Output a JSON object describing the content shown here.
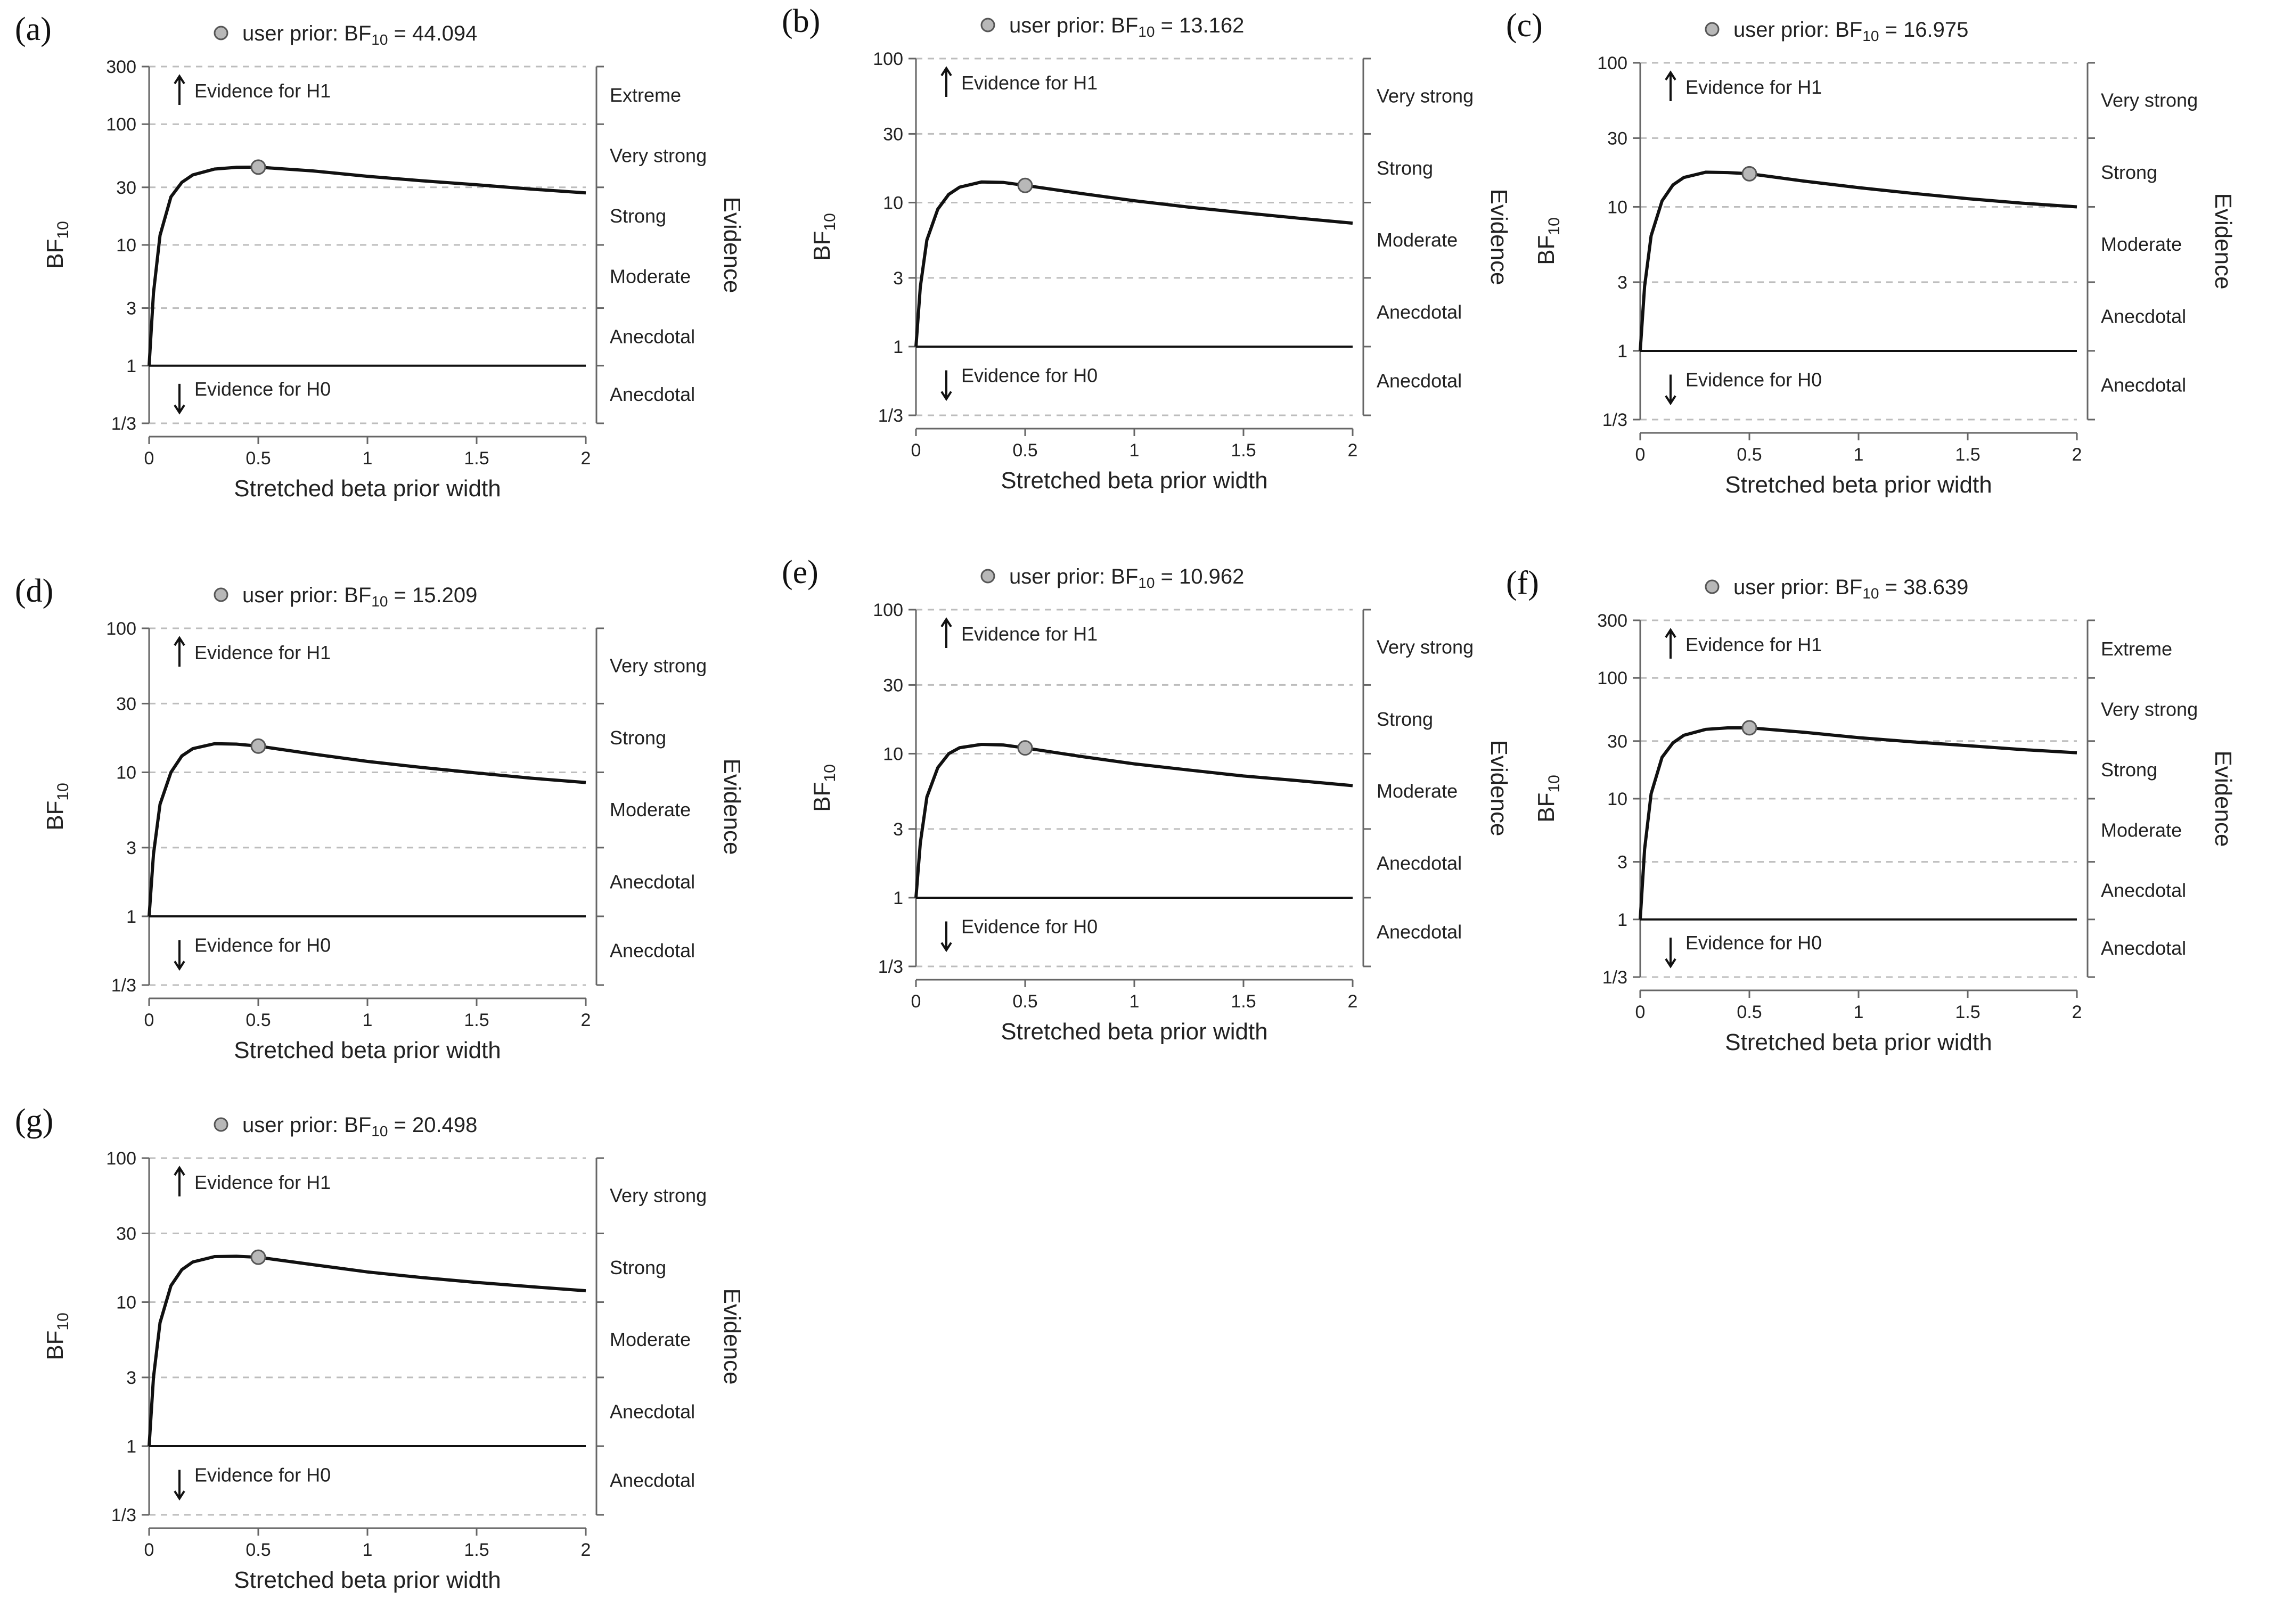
{
  "figure": {
    "panels": [
      {
        "label": "(a)",
        "legend_text": "user prior:",
        "bf_symbol": "BF",
        "bf_sub": "10",
        "bf_value": "44.094"
      },
      {
        "label": "(b)",
        "legend_text": "user prior:",
        "bf_symbol": "BF",
        "bf_sub": "10",
        "bf_value": "13.162"
      },
      {
        "label": "(c)",
        "legend_text": "user prior:",
        "bf_symbol": "BF",
        "bf_sub": "10",
        "bf_value": "16.975"
      },
      {
        "label": "(d)",
        "legend_text": "user prior:",
        "bf_symbol": "BF",
        "bf_sub": "10",
        "bf_value": "15.209"
      },
      {
        "label": "(e)",
        "legend_text": "user prior:",
        "bf_symbol": "BF",
        "bf_sub": "10",
        "bf_value": "10.962"
      },
      {
        "label": "(f)",
        "legend_text": "user prior:",
        "bf_symbol": "BF",
        "bf_sub": "10",
        "bf_value": "38.639"
      },
      {
        "label": "(g)",
        "legend_text": "user prior:",
        "bf_symbol": "BF",
        "bf_sub": "10",
        "bf_value": "20.498"
      }
    ]
  },
  "chart_data": [
    {
      "type": "line",
      "panel": "(a)",
      "title": "user prior: BF10 = 44.094",
      "xlabel": "Stretched beta prior width",
      "ylabel": "BF10",
      "right_label": "Evidence",
      "y_scale": "log",
      "xlim": [
        0,
        2
      ],
      "ylim": [
        0.3333,
        300
      ],
      "x_ticks": [
        "0",
        "0.5",
        "1",
        "1.5",
        "2"
      ],
      "y_ticks": [
        {
          "v": 300,
          "t": "300"
        },
        {
          "v": 100,
          "t": "100"
        },
        {
          "v": 30,
          "t": "30"
        },
        {
          "v": 10,
          "t": "10"
        },
        {
          "v": 3,
          "t": "3"
        },
        {
          "v": 1,
          "t": "1"
        },
        {
          "v": 0.3333,
          "t": "1/3"
        }
      ],
      "evidence_categories": [
        {
          "t": "Extreme",
          "lo": 100,
          "hi": 300
        },
        {
          "t": "Very strong",
          "lo": 30,
          "hi": 100
        },
        {
          "t": "Strong",
          "lo": 10,
          "hi": 30
        },
        {
          "t": "Moderate",
          "lo": 3,
          "hi": 10
        },
        {
          "t": "Anecdotal",
          "lo": 1,
          "hi": 3
        },
        {
          "t": "Anecdotal",
          "lo": 0.3333,
          "hi": 1
        }
      ],
      "annotations": [
        "Evidence for H1",
        "Evidence for H0"
      ],
      "series": {
        "x": [
          0,
          0.02,
          0.05,
          0.1,
          0.15,
          0.2,
          0.3,
          0.4,
          0.5,
          0.75,
          1,
          1.25,
          1.5,
          1.75,
          2
        ],
        "y": [
          1,
          4,
          12,
          25,
          33,
          38,
          42.5,
          43.9,
          44.094,
          41,
          37,
          34,
          31.5,
          29,
          27
        ]
      },
      "user_prior_point": {
        "x": 0.5,
        "y": 44.094
      }
    },
    {
      "type": "line",
      "panel": "(b)",
      "title": "user prior: BF10 = 13.162",
      "xlabel": "Stretched beta prior width",
      "ylabel": "BF10",
      "right_label": "Evidence",
      "y_scale": "log",
      "xlim": [
        0,
        2
      ],
      "ylim": [
        0.3333,
        100
      ],
      "x_ticks": [
        "0",
        "0.5",
        "1",
        "1.5",
        "2"
      ],
      "y_ticks": [
        {
          "v": 100,
          "t": "100"
        },
        {
          "v": 30,
          "t": "30"
        },
        {
          "v": 10,
          "t": "10"
        },
        {
          "v": 3,
          "t": "3"
        },
        {
          "v": 1,
          "t": "1"
        },
        {
          "v": 0.3333,
          "t": "1/3"
        }
      ],
      "evidence_categories": [
        {
          "t": "Very strong",
          "lo": 30,
          "hi": 100
        },
        {
          "t": "Strong",
          "lo": 10,
          "hi": 30
        },
        {
          "t": "Moderate",
          "lo": 3,
          "hi": 10
        },
        {
          "t": "Anecdotal",
          "lo": 1,
          "hi": 3
        },
        {
          "t": "Anecdotal",
          "lo": 0.3333,
          "hi": 1
        }
      ],
      "annotations": [
        "Evidence for H1",
        "Evidence for H0"
      ],
      "series": {
        "x": [
          0,
          0.02,
          0.05,
          0.1,
          0.15,
          0.2,
          0.3,
          0.4,
          0.5,
          0.75,
          1,
          1.25,
          1.5,
          1.75,
          2
        ],
        "y": [
          1,
          2.6,
          5.5,
          9,
          11.4,
          12.8,
          13.9,
          13.8,
          13.162,
          11.6,
          10.3,
          9.3,
          8.5,
          7.8,
          7.2
        ]
      },
      "user_prior_point": {
        "x": 0.5,
        "y": 13.162
      }
    },
    {
      "type": "line",
      "panel": "(c)",
      "title": "user prior: BF10 = 16.975",
      "xlabel": "Stretched beta prior width",
      "ylabel": "BF10",
      "right_label": "Evidence",
      "y_scale": "log",
      "xlim": [
        0,
        2
      ],
      "ylim": [
        0.3333,
        100
      ],
      "x_ticks": [
        "0",
        "0.5",
        "1",
        "1.5",
        "2"
      ],
      "y_ticks": [
        {
          "v": 100,
          "t": "100"
        },
        {
          "v": 30,
          "t": "30"
        },
        {
          "v": 10,
          "t": "10"
        },
        {
          "v": 3,
          "t": "3"
        },
        {
          "v": 1,
          "t": "1"
        },
        {
          "v": 0.3333,
          "t": "1/3"
        }
      ],
      "evidence_categories": [
        {
          "t": "Very strong",
          "lo": 30,
          "hi": 100
        },
        {
          "t": "Strong",
          "lo": 10,
          "hi": 30
        },
        {
          "t": "Moderate",
          "lo": 3,
          "hi": 10
        },
        {
          "t": "Anecdotal",
          "lo": 1,
          "hi": 3
        },
        {
          "t": "Anecdotal",
          "lo": 0.3333,
          "hi": 1
        }
      ],
      "annotations": [
        "Evidence for H1",
        "Evidence for H0"
      ],
      "series": {
        "x": [
          0,
          0.02,
          0.05,
          0.1,
          0.15,
          0.2,
          0.3,
          0.4,
          0.5,
          0.75,
          1,
          1.25,
          1.5,
          1.75,
          2
        ],
        "y": [
          1,
          2.8,
          6.3,
          11,
          14.2,
          16,
          17.4,
          17.3,
          16.975,
          15.1,
          13.6,
          12.4,
          11.4,
          10.6,
          10
        ]
      },
      "user_prior_point": {
        "x": 0.5,
        "y": 16.975
      }
    },
    {
      "type": "line",
      "panel": "(d)",
      "title": "user prior: BF10 = 15.209",
      "xlabel": "Stretched beta prior width",
      "ylabel": "BF10",
      "right_label": "Evidence",
      "y_scale": "log",
      "xlim": [
        0,
        2
      ],
      "ylim": [
        0.3333,
        100
      ],
      "x_ticks": [
        "0",
        "0.5",
        "1",
        "1.5",
        "2"
      ],
      "y_ticks": [
        {
          "v": 100,
          "t": "100"
        },
        {
          "v": 30,
          "t": "30"
        },
        {
          "v": 10,
          "t": "10"
        },
        {
          "v": 3,
          "t": "3"
        },
        {
          "v": 1,
          "t": "1"
        },
        {
          "v": 0.3333,
          "t": "1/3"
        }
      ],
      "evidence_categories": [
        {
          "t": "Very strong",
          "lo": 30,
          "hi": 100
        },
        {
          "t": "Strong",
          "lo": 10,
          "hi": 30
        },
        {
          "t": "Moderate",
          "lo": 3,
          "hi": 10
        },
        {
          "t": "Anecdotal",
          "lo": 1,
          "hi": 3
        },
        {
          "t": "Anecdotal",
          "lo": 0.3333,
          "hi": 1
        }
      ],
      "annotations": [
        "Evidence for H1",
        "Evidence for H0"
      ],
      "series": {
        "x": [
          0,
          0.02,
          0.05,
          0.1,
          0.15,
          0.2,
          0.3,
          0.4,
          0.5,
          0.75,
          1,
          1.25,
          1.5,
          1.75,
          2
        ],
        "y": [
          1,
          2.7,
          6,
          10,
          13,
          14.6,
          15.8,
          15.7,
          15.209,
          13.4,
          11.9,
          10.8,
          9.9,
          9.1,
          8.5
        ]
      },
      "user_prior_point": {
        "x": 0.5,
        "y": 15.209
      }
    },
    {
      "type": "line",
      "panel": "(e)",
      "title": "user prior: BF10 = 10.962",
      "xlabel": "Stretched beta prior width",
      "ylabel": "BF10",
      "right_label": "Evidence",
      "y_scale": "log",
      "xlim": [
        0,
        2
      ],
      "ylim": [
        0.3333,
        100
      ],
      "x_ticks": [
        "0",
        "0.5",
        "1",
        "1.5",
        "2"
      ],
      "y_ticks": [
        {
          "v": 100,
          "t": "100"
        },
        {
          "v": 30,
          "t": "30"
        },
        {
          "v": 10,
          "t": "10"
        },
        {
          "v": 3,
          "t": "3"
        },
        {
          "v": 1,
          "t": "1"
        },
        {
          "v": 0.3333,
          "t": "1/3"
        }
      ],
      "evidence_categories": [
        {
          "t": "Very strong",
          "lo": 30,
          "hi": 100
        },
        {
          "t": "Strong",
          "lo": 10,
          "hi": 30
        },
        {
          "t": "Moderate",
          "lo": 3,
          "hi": 10
        },
        {
          "t": "Anecdotal",
          "lo": 1,
          "hi": 3
        },
        {
          "t": "Anecdotal",
          "lo": 0.3333,
          "hi": 1
        }
      ],
      "annotations": [
        "Evidence for H1",
        "Evidence for H0"
      ],
      "series": {
        "x": [
          0,
          0.02,
          0.05,
          0.1,
          0.15,
          0.2,
          0.3,
          0.4,
          0.5,
          0.75,
          1,
          1.25,
          1.5,
          1.75,
          2
        ],
        "y": [
          1,
          2.4,
          5,
          8,
          10,
          11,
          11.6,
          11.5,
          10.962,
          9.6,
          8.5,
          7.7,
          7,
          6.5,
          6
        ]
      },
      "user_prior_point": {
        "x": 0.5,
        "y": 10.962
      }
    },
    {
      "type": "line",
      "panel": "(f)",
      "title": "user prior: BF10 = 38.639",
      "xlabel": "Stretched beta prior width",
      "ylabel": "BF10",
      "right_label": "Evidence",
      "y_scale": "log",
      "xlim": [
        0,
        2
      ],
      "ylim": [
        0.3333,
        300
      ],
      "x_ticks": [
        "0",
        "0.5",
        "1",
        "1.5",
        "2"
      ],
      "y_ticks": [
        {
          "v": 300,
          "t": "300"
        },
        {
          "v": 100,
          "t": "100"
        },
        {
          "v": 30,
          "t": "30"
        },
        {
          "v": 10,
          "t": "10"
        },
        {
          "v": 3,
          "t": "3"
        },
        {
          "v": 1,
          "t": "1"
        },
        {
          "v": 0.3333,
          "t": "1/3"
        }
      ],
      "evidence_categories": [
        {
          "t": "Extreme",
          "lo": 100,
          "hi": 300
        },
        {
          "t": "Very strong",
          "lo": 30,
          "hi": 100
        },
        {
          "t": "Strong",
          "lo": 10,
          "hi": 30
        },
        {
          "t": "Moderate",
          "lo": 3,
          "hi": 10
        },
        {
          "t": "Anecdotal",
          "lo": 1,
          "hi": 3
        },
        {
          "t": "Anecdotal",
          "lo": 0.3333,
          "hi": 1
        }
      ],
      "annotations": [
        "Evidence for H1",
        "Evidence for H0"
      ],
      "series": {
        "x": [
          0,
          0.02,
          0.05,
          0.1,
          0.15,
          0.2,
          0.3,
          0.4,
          0.5,
          0.75,
          1,
          1.25,
          1.5,
          1.75,
          2
        ],
        "y": [
          1,
          3.8,
          11,
          22,
          29,
          33.5,
          37.5,
          38.6,
          38.639,
          35.5,
          32,
          29.5,
          27.5,
          25.5,
          24
        ]
      },
      "user_prior_point": {
        "x": 0.5,
        "y": 38.639
      }
    },
    {
      "type": "line",
      "panel": "(g)",
      "title": "user prior: BF10 = 20.498",
      "xlabel": "Stretched beta prior width",
      "ylabel": "BF10",
      "right_label": "Evidence",
      "y_scale": "log",
      "xlim": [
        0,
        2
      ],
      "ylim": [
        0.3333,
        100
      ],
      "x_ticks": [
        "0",
        "0.5",
        "1",
        "1.5",
        "2"
      ],
      "y_ticks": [
        {
          "v": 100,
          "t": "100"
        },
        {
          "v": 30,
          "t": "30"
        },
        {
          "v": 10,
          "t": "10"
        },
        {
          "v": 3,
          "t": "3"
        },
        {
          "v": 1,
          "t": "1"
        },
        {
          "v": 0.3333,
          "t": "1/3"
        }
      ],
      "evidence_categories": [
        {
          "t": "Very strong",
          "lo": 30,
          "hi": 100
        },
        {
          "t": "Strong",
          "lo": 10,
          "hi": 30
        },
        {
          "t": "Moderate",
          "lo": 3,
          "hi": 10
        },
        {
          "t": "Anecdotal",
          "lo": 1,
          "hi": 3
        },
        {
          "t": "Anecdotal",
          "lo": 0.3333,
          "hi": 1
        }
      ],
      "annotations": [
        "Evidence for H1",
        "Evidence for H0"
      ],
      "series": {
        "x": [
          0,
          0.02,
          0.05,
          0.1,
          0.15,
          0.2,
          0.3,
          0.4,
          0.5,
          0.75,
          1,
          1.25,
          1.5,
          1.75,
          2
        ],
        "y": [
          1,
          3,
          7.2,
          13,
          16.8,
          19,
          20.7,
          20.8,
          20.498,
          18.2,
          16.2,
          14.8,
          13.7,
          12.8,
          12
        ]
      },
      "user_prior_point": {
        "x": 0.5,
        "y": 20.498
      }
    }
  ]
}
